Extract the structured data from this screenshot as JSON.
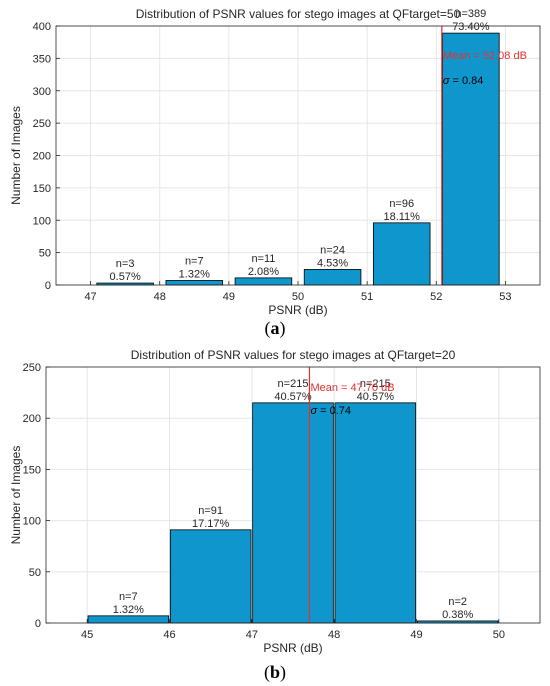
{
  "colors": {
    "bar_fill": "#0f96cc",
    "bar_edge": "#000000",
    "mean_line": "#e03030",
    "mean_text": "#e83030",
    "grid": "#e6e6e6",
    "axis": "#262626"
  },
  "chart_data": [
    {
      "type": "bar",
      "panel_label": "a",
      "title": "Distribution of PSNR values for stego images at QFtarget=50",
      "xlabel": "PSNR (dB)",
      "ylabel": "Number of Images",
      "xlim": [
        46.5,
        53.5
      ],
      "ylim": [
        0,
        400
      ],
      "xticks": [
        47,
        48,
        49,
        50,
        51,
        52,
        53
      ],
      "yticks": [
        0,
        50,
        100,
        150,
        200,
        250,
        300,
        350,
        400
      ],
      "grid": true,
      "bins": [
        {
          "x": 47.5,
          "count": 3,
          "n_label": "n=3",
          "pct_label": "0.57%"
        },
        {
          "x": 48.5,
          "count": 7,
          "n_label": "n=7",
          "pct_label": "1.32%"
        },
        {
          "x": 49.5,
          "count": 11,
          "n_label": "n=11",
          "pct_label": "2.08%"
        },
        {
          "x": 50.5,
          "count": 24,
          "n_label": "n=24",
          "pct_label": "4.53%"
        },
        {
          "x": 51.5,
          "count": 96,
          "n_label": "n=96",
          "pct_label": "18.11%"
        },
        {
          "x": 52.5,
          "count": 389,
          "n_label": "n=389",
          "pct_label": "73.40%"
        }
      ],
      "mean": 52.08,
      "mean_label": "Mean = 52.08 dB",
      "sigma_symbol": "σ",
      "sigma_value": " = 0.84"
    },
    {
      "type": "bar",
      "panel_label": "b",
      "title": "Distribution of PSNR values for stego images at QFtarget=20",
      "xlabel": "PSNR (dB)",
      "ylabel": "Number of Images",
      "xlim": [
        44.5,
        50.5
      ],
      "ylim": [
        0,
        250
      ],
      "xticks": [
        45,
        46,
        47,
        48,
        49,
        50
      ],
      "yticks": [
        0,
        50,
        100,
        150,
        200,
        250
      ],
      "grid": true,
      "bins": [
        {
          "x": 45.5,
          "count": 7,
          "n_label": "n=7",
          "pct_label": "1.32%"
        },
        {
          "x": 46.5,
          "count": 91,
          "n_label": "n=91",
          "pct_label": "17.17%"
        },
        {
          "x": 47.5,
          "count": 215,
          "n_label": "n=215",
          "pct_label": "40.57%"
        },
        {
          "x": 48.5,
          "count": 215,
          "n_label": "n=215",
          "pct_label": "40.57%"
        },
        {
          "x": 49.5,
          "count": 2,
          "n_label": "n=2",
          "pct_label": "0.38%"
        }
      ],
      "mean": 47.7,
      "mean_label": "Mean = 47.70 dB",
      "sigma_symbol": "σ",
      "sigma_value": " = 0.74"
    }
  ]
}
